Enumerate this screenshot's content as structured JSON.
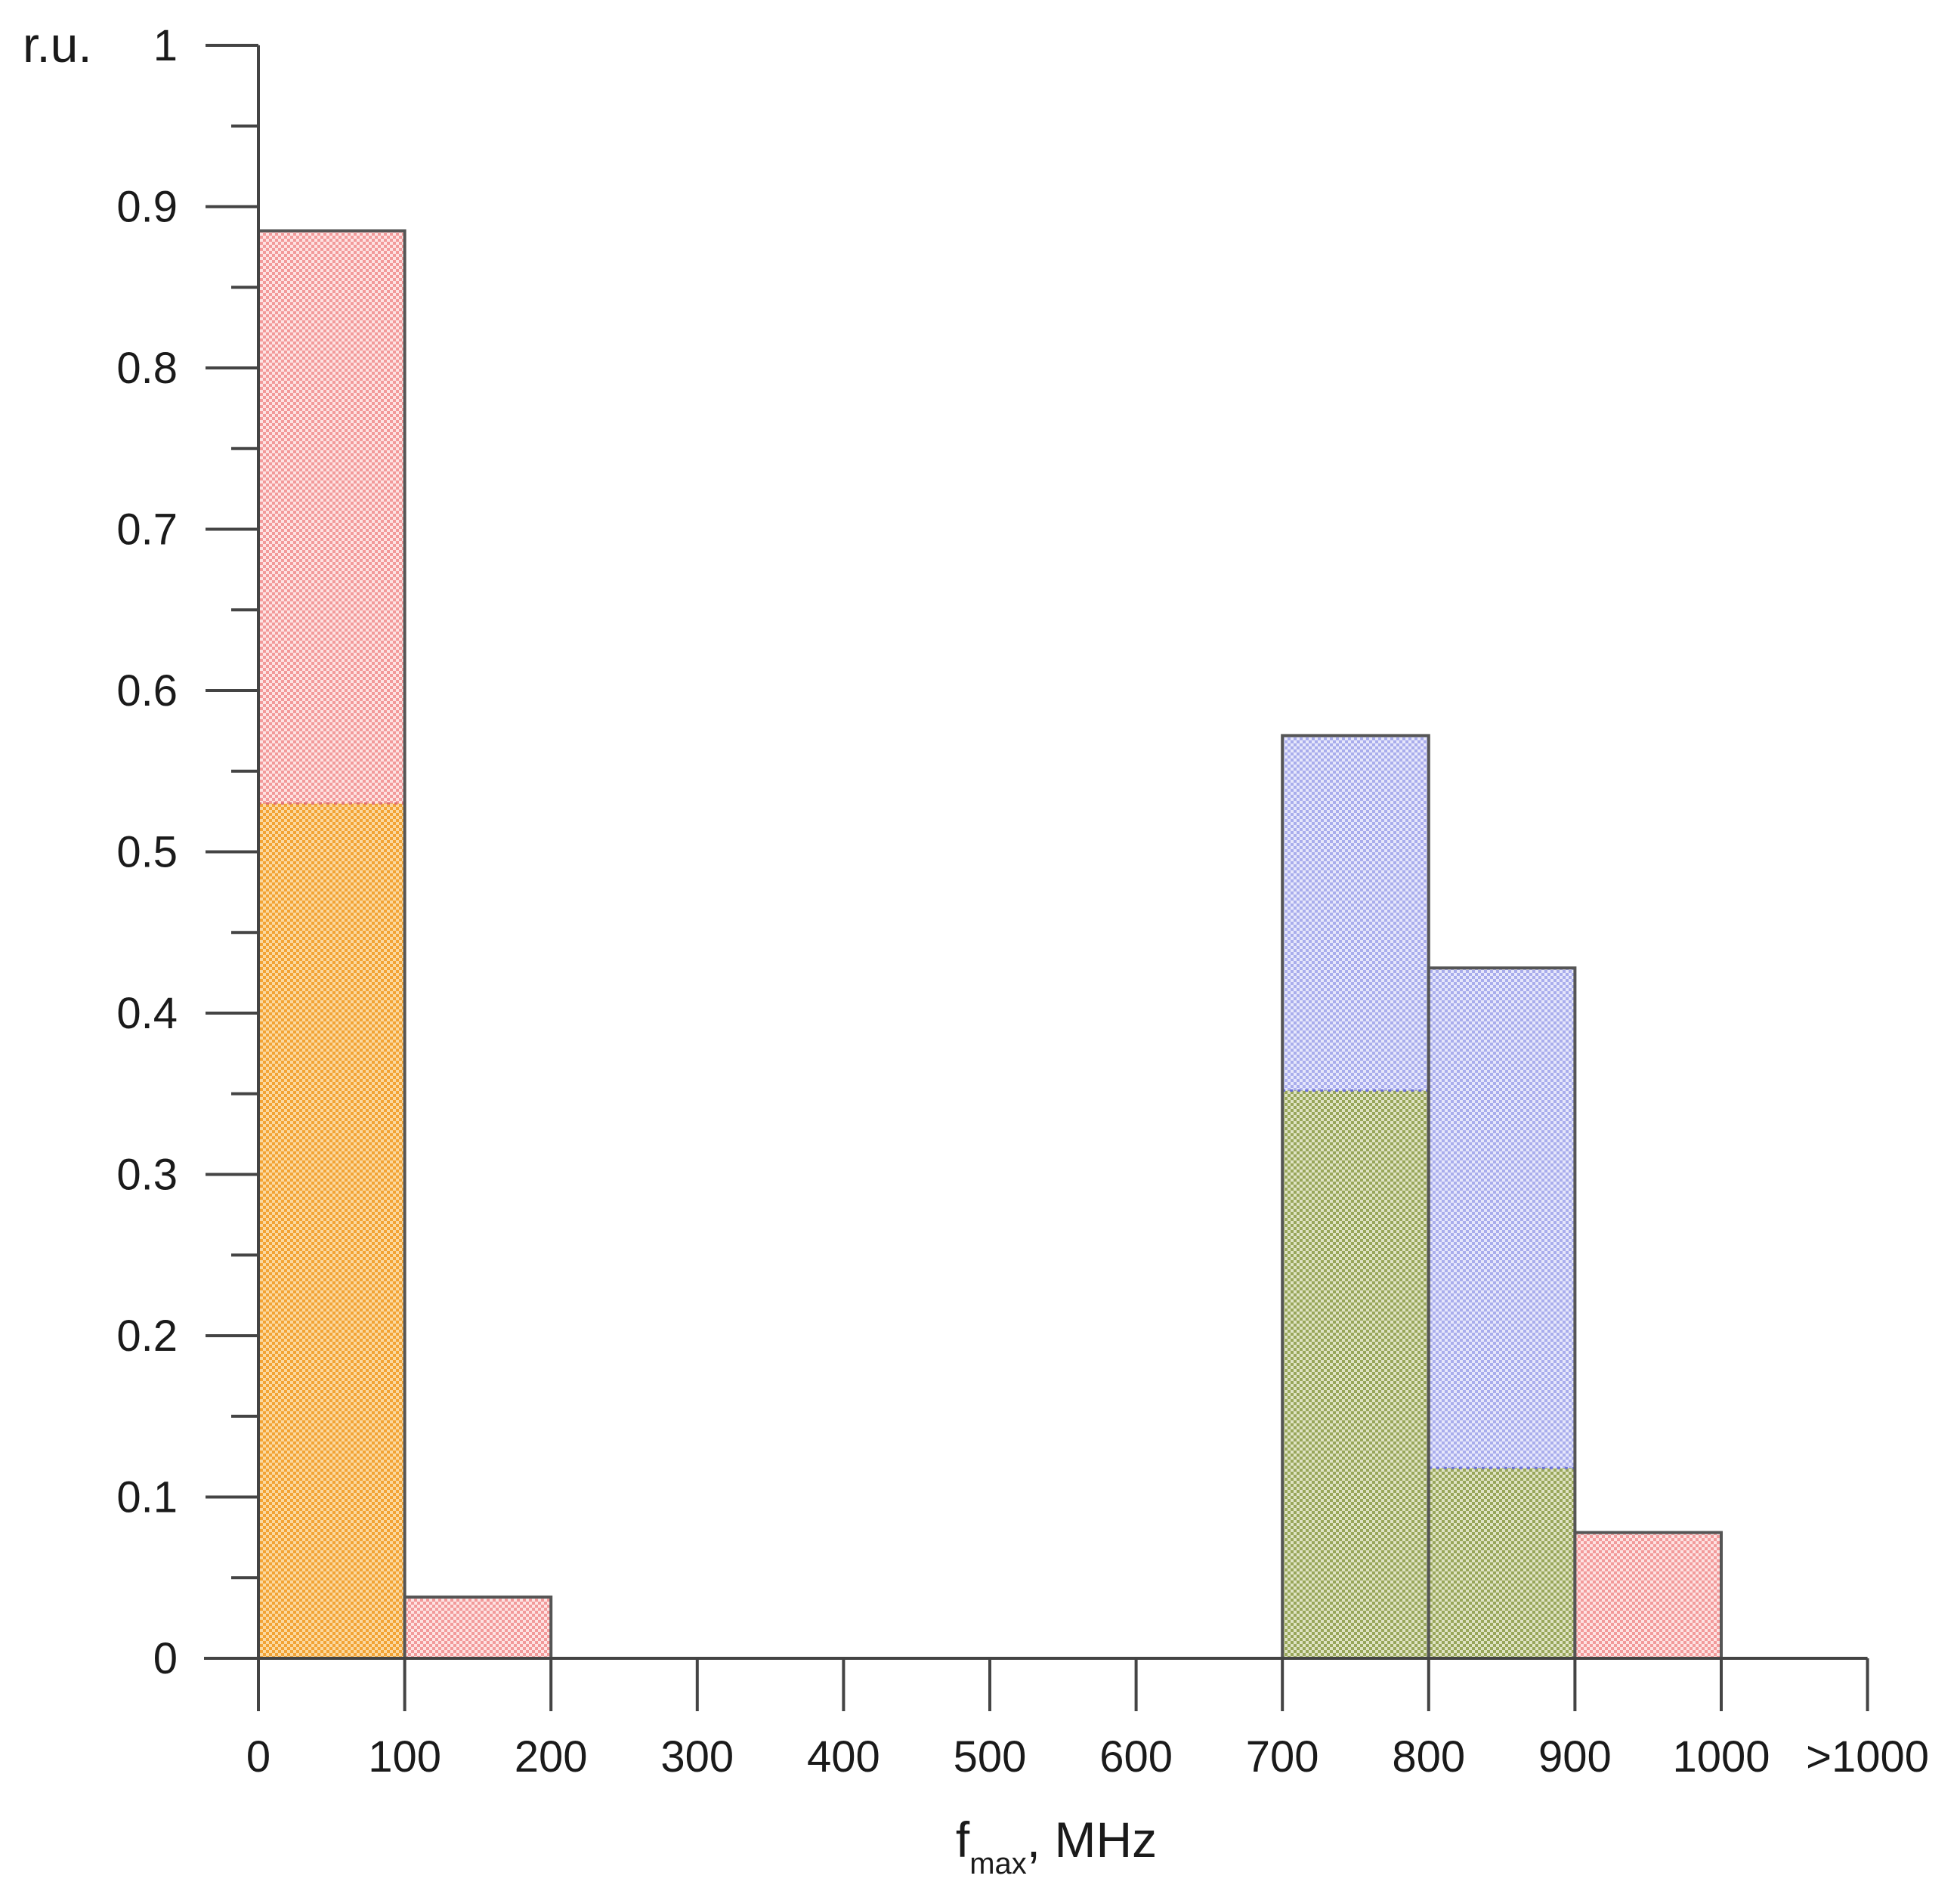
{
  "chart_data": {
    "type": "bar",
    "ylabel": "r.u.",
    "xlabel": {
      "main": "f",
      "sub": "max",
      "suffix": ", MHz"
    },
    "ylim": [
      0,
      1
    ],
    "y_ticks": [
      "0",
      "0.1",
      "0.2",
      "0.3",
      "0.4",
      "0.5",
      "0.6",
      "0.7",
      "0.8",
      "0.9",
      "1"
    ],
    "categories": [
      "0",
      "100",
      "200",
      "300",
      "400",
      "500",
      "600",
      "700",
      "800",
      "900",
      "1000",
      ">1000"
    ],
    "bins": [
      {
        "from": "0",
        "to": "100",
        "total": 0.885,
        "segments": [
          {
            "color": "orange",
            "value": 0.53
          },
          {
            "color": "red",
            "value": 0.355
          }
        ]
      },
      {
        "from": "100",
        "to": "200",
        "total": 0.038,
        "segments": [
          {
            "color": "red",
            "value": 0.038
          }
        ]
      },
      {
        "from": "700",
        "to": "800",
        "total": 0.572,
        "segments": [
          {
            "color": "green",
            "value": 0.352
          },
          {
            "color": "blue",
            "value": 0.22
          }
        ]
      },
      {
        "from": "800",
        "to": "900",
        "total": 0.428,
        "segments": [
          {
            "color": "green",
            "value": 0.118
          },
          {
            "color": "blue",
            "value": 0.31
          }
        ]
      },
      {
        "from": "900",
        "to": "1000",
        "total": 0.078,
        "segments": [
          {
            "color": "red",
            "value": 0.078
          }
        ]
      }
    ],
    "colors": {
      "red": "#f7a8a8",
      "orange": "#f5a623",
      "blue": "#aab0f2",
      "green": "#9aa85a",
      "axis": "#444444"
    },
    "grid": false,
    "legend": "none"
  }
}
